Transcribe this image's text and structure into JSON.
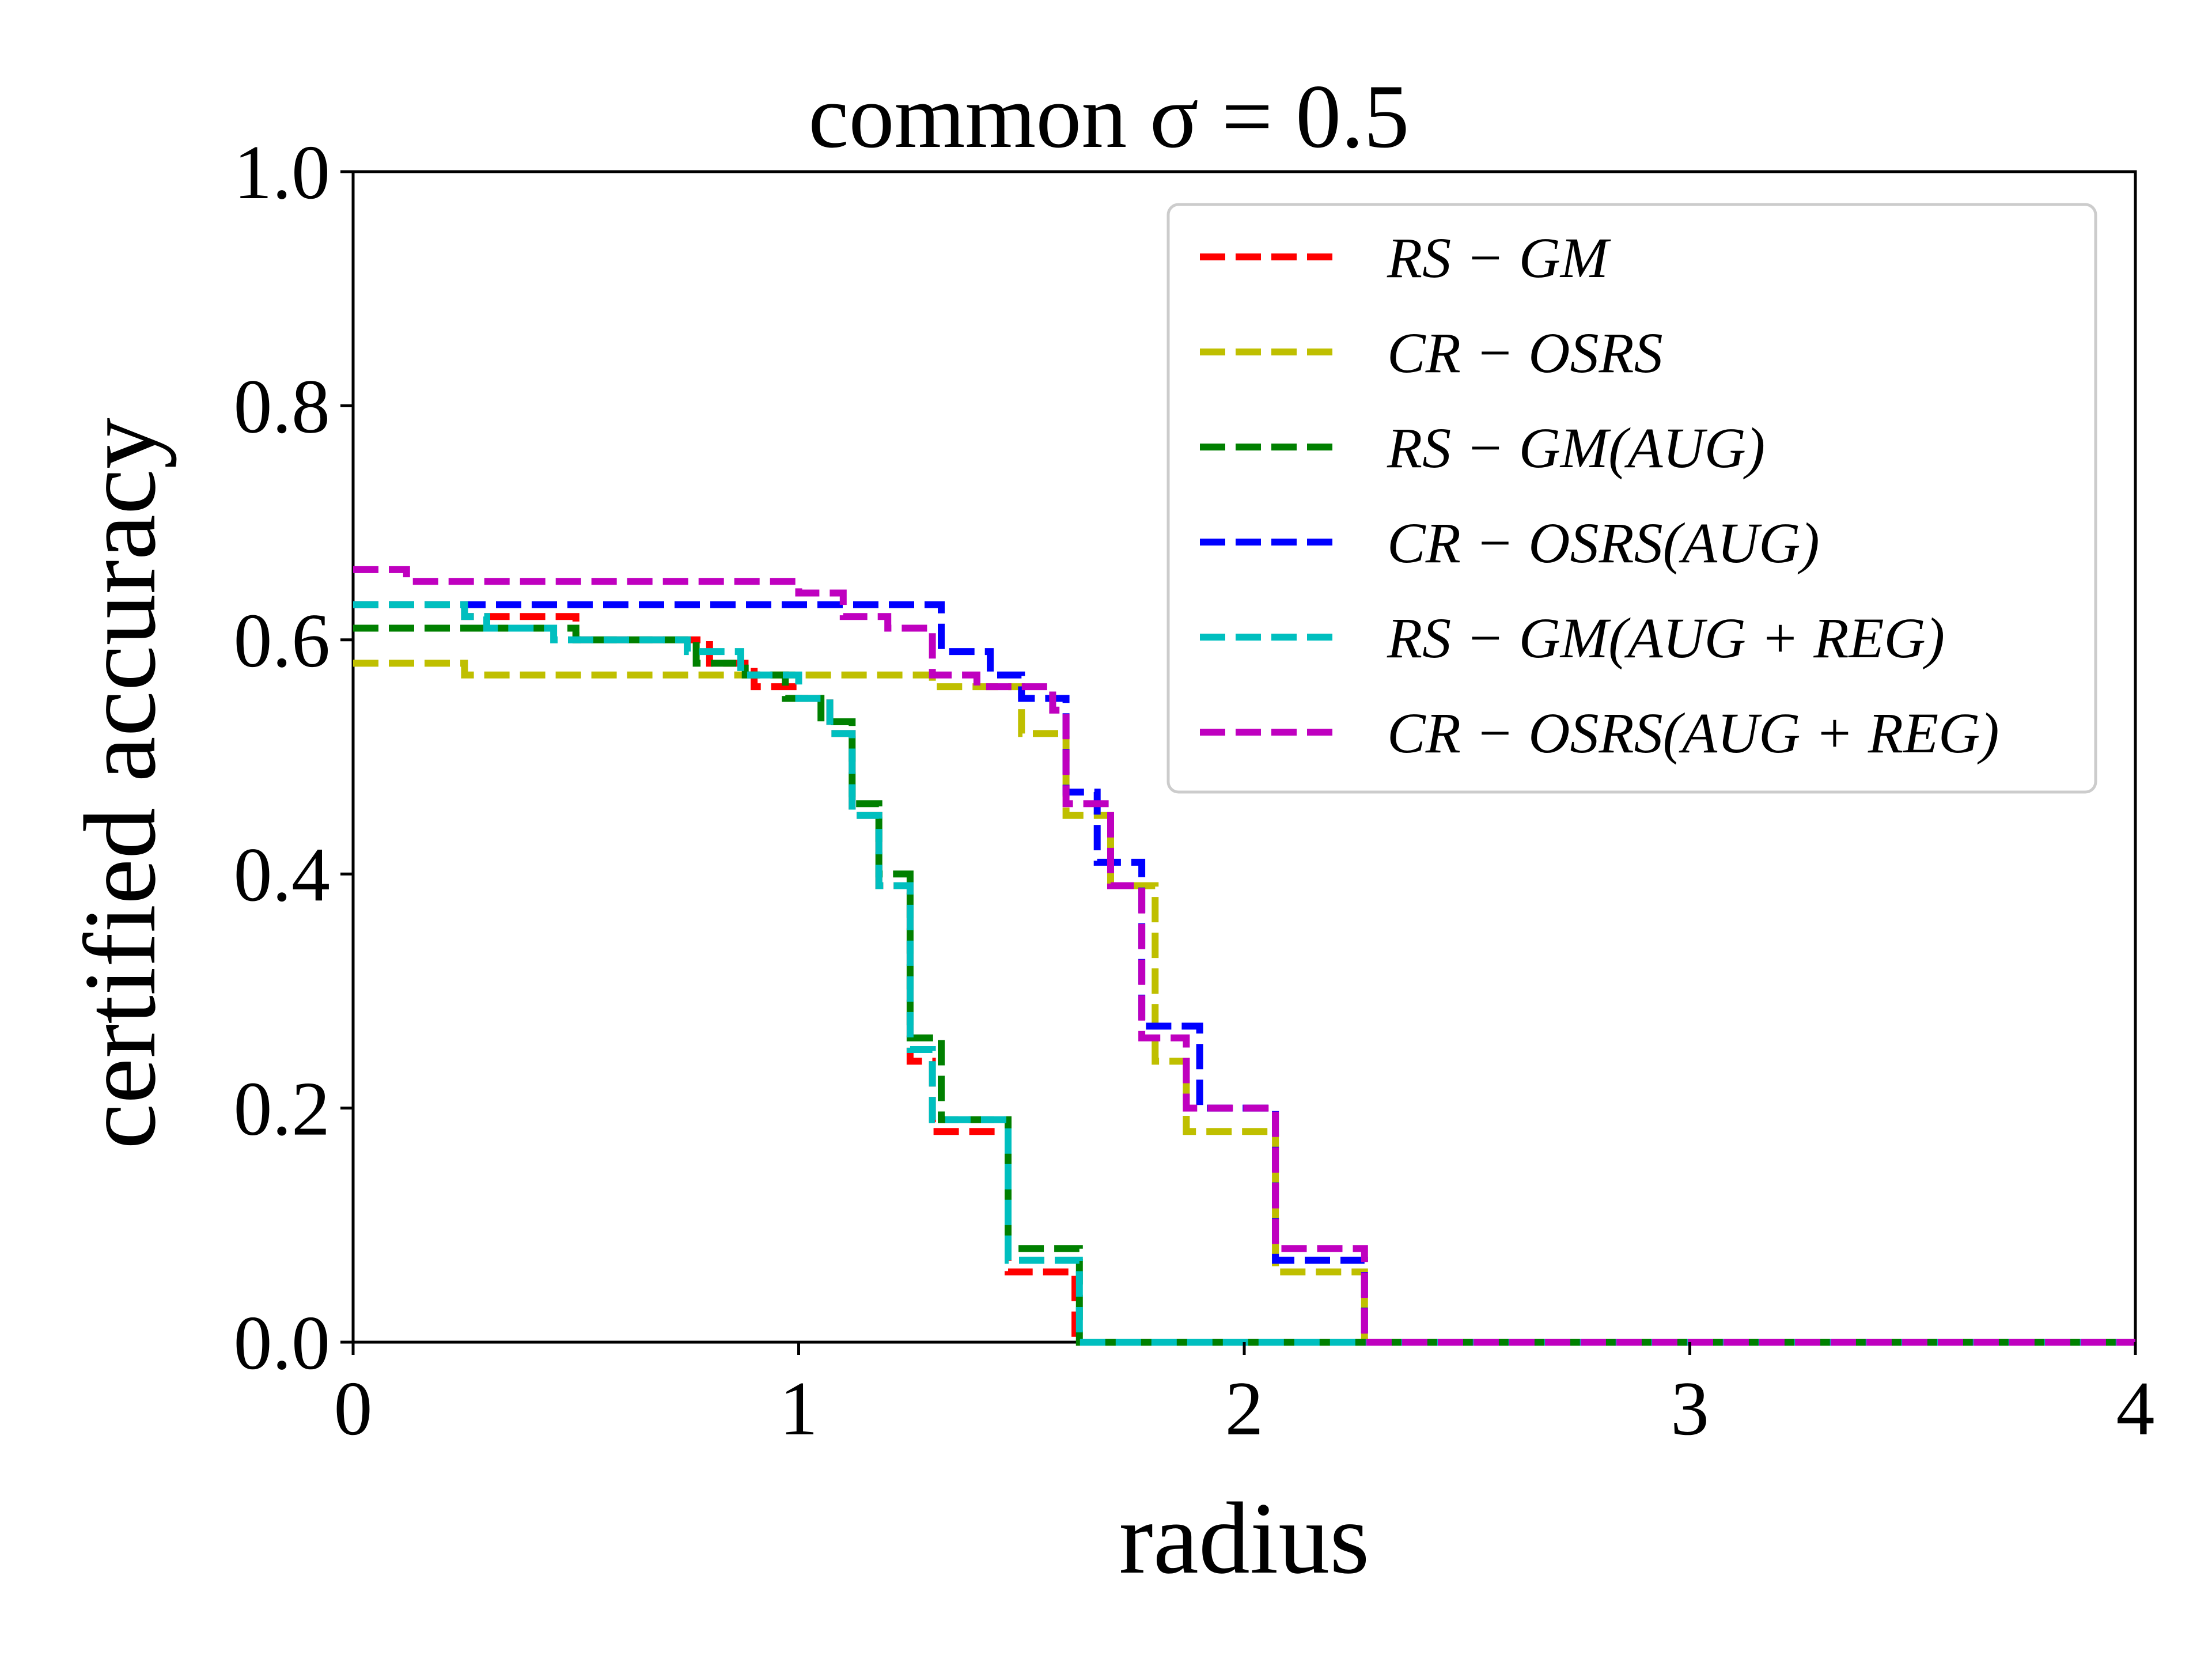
{
  "chart_data": {
    "type": "line",
    "title": "common σ = 0.5",
    "xlabel": "radius",
    "ylabel": "certified accuracy",
    "xlim": [
      0,
      4
    ],
    "ylim": [
      0,
      1
    ],
    "xticks": [
      "0",
      "1",
      "2",
      "3",
      "4"
    ],
    "yticks": [
      "0.0",
      "0.2",
      "0.4",
      "0.6",
      "0.8",
      "1.0"
    ],
    "grid": false,
    "legend_position": "top-right",
    "line_style": "dashed",
    "series": [
      {
        "name": "RS − GM",
        "color": "#ff0000",
        "points": [
          [
            0,
            0.63
          ],
          [
            0.25,
            0.62
          ],
          [
            0.5,
            0.6
          ],
          [
            0.8,
            0.58
          ],
          [
            0.9,
            0.56
          ],
          [
            1.0,
            0.55
          ],
          [
            1.07,
            0.52
          ],
          [
            1.12,
            0.45
          ],
          [
            1.18,
            0.39
          ],
          [
            1.25,
            0.24
          ],
          [
            1.3,
            0.18
          ],
          [
            1.47,
            0.06
          ],
          [
            1.62,
            0.0
          ],
          [
            4.0,
            0.0
          ]
        ]
      },
      {
        "name": "CR − OSRS",
        "color": "#bfbf00",
        "points": [
          [
            0,
            0.58
          ],
          [
            0.25,
            0.57
          ],
          [
            1.3,
            0.56
          ],
          [
            1.5,
            0.52
          ],
          [
            1.6,
            0.45
          ],
          [
            1.7,
            0.39
          ],
          [
            1.8,
            0.24
          ],
          [
            1.87,
            0.18
          ],
          [
            2.07,
            0.06
          ],
          [
            2.27,
            0.0
          ],
          [
            4.0,
            0.0
          ]
        ]
      },
      {
        "name": "RS − GM(AUG)",
        "color": "#008000",
        "points": [
          [
            0,
            0.61
          ],
          [
            0.5,
            0.6
          ],
          [
            0.77,
            0.58
          ],
          [
            0.88,
            0.57
          ],
          [
            0.97,
            0.55
          ],
          [
            1.05,
            0.53
          ],
          [
            1.12,
            0.46
          ],
          [
            1.18,
            0.4
          ],
          [
            1.25,
            0.26
          ],
          [
            1.32,
            0.19
          ],
          [
            1.47,
            0.08
          ],
          [
            1.63,
            0.0
          ],
          [
            4.0,
            0.0
          ]
        ]
      },
      {
        "name": "CR − OSRS(AUG)",
        "color": "#0000ff",
        "points": [
          [
            0,
            0.63
          ],
          [
            1.27,
            0.63
          ],
          [
            1.32,
            0.59
          ],
          [
            1.43,
            0.57
          ],
          [
            1.5,
            0.55
          ],
          [
            1.6,
            0.47
          ],
          [
            1.67,
            0.41
          ],
          [
            1.77,
            0.27
          ],
          [
            1.9,
            0.2
          ],
          [
            2.07,
            0.07
          ],
          [
            2.27,
            0.0
          ],
          [
            4.0,
            0.0
          ]
        ]
      },
      {
        "name": "RS − GM(AUG + REG)",
        "color": "#00bfbf",
        "points": [
          [
            0,
            0.63
          ],
          [
            0.25,
            0.62
          ],
          [
            0.3,
            0.61
          ],
          [
            0.45,
            0.6
          ],
          [
            0.75,
            0.59
          ],
          [
            0.87,
            0.57
          ],
          [
            1.0,
            0.55
          ],
          [
            1.07,
            0.52
          ],
          [
            1.12,
            0.45
          ],
          [
            1.18,
            0.39
          ],
          [
            1.25,
            0.25
          ],
          [
            1.3,
            0.19
          ],
          [
            1.47,
            0.07
          ],
          [
            1.63,
            0.0
          ],
          [
            4.0,
            0.0
          ]
        ]
      },
      {
        "name": "CR − OSRS(AUG + REG)",
        "color": "#bf00bf",
        "points": [
          [
            0,
            0.66
          ],
          [
            0.12,
            0.65
          ],
          [
            1.0,
            0.64
          ],
          [
            1.1,
            0.62
          ],
          [
            1.2,
            0.61
          ],
          [
            1.3,
            0.57
          ],
          [
            1.4,
            0.56
          ],
          [
            1.57,
            0.54
          ],
          [
            1.6,
            0.46
          ],
          [
            1.7,
            0.39
          ],
          [
            1.77,
            0.26
          ],
          [
            1.87,
            0.2
          ],
          [
            2.07,
            0.08
          ],
          [
            2.27,
            0.0
          ],
          [
            4.0,
            0.0
          ]
        ]
      }
    ]
  }
}
